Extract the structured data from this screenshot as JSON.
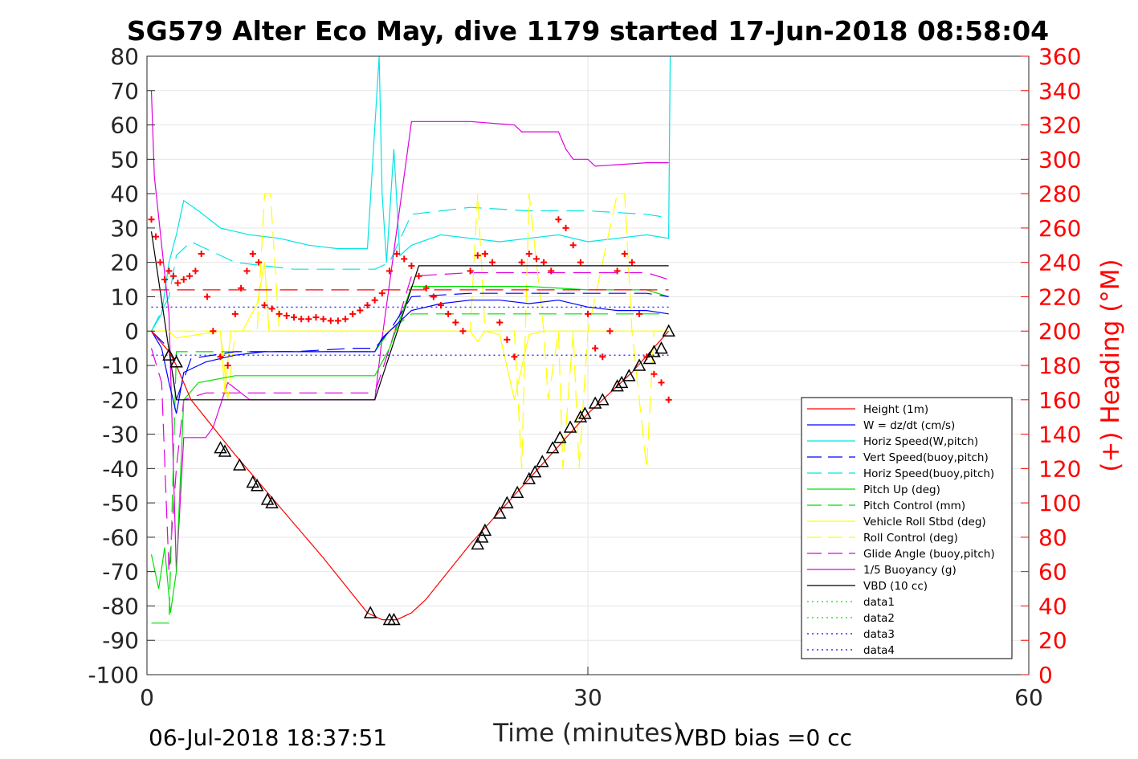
{
  "title": "SG579 Alter Eco May, dive 1179 started 17-Jun-2018 08:58:04",
  "footer_left": "06-Jul-2018 18:37:51",
  "footer_right": "VBD bias =0 cc",
  "colors": {
    "red": "#ff0000",
    "blue": "#0000ff",
    "cyan": "#00e5e5",
    "green": "#00e000",
    "yellow": "#ffff00",
    "magenta": "#e000e0",
    "black": "#000000"
  },
  "chart_data": {
    "type": "line",
    "xlabel": "Time (minutes)",
    "ylabel_right": "(+) Heading (°M)",
    "xlim": [
      0,
      60
    ],
    "ylim": [
      -100,
      80
    ],
    "ylim_right": [
      0,
      360
    ],
    "xticks": [
      0,
      30,
      60
    ],
    "yticks": [
      -100,
      -90,
      -80,
      -70,
      -60,
      -50,
      -40,
      -30,
      -20,
      -10,
      0,
      10,
      20,
      30,
      40,
      50,
      60,
      70,
      80
    ],
    "yticks_right": [
      0,
      20,
      40,
      60,
      80,
      100,
      120,
      140,
      160,
      180,
      200,
      220,
      240,
      260,
      280,
      300,
      320,
      340,
      360
    ],
    "grid": true,
    "legend_position": "lower-right",
    "series": [
      {
        "name": "Height (1m)",
        "color": "#ff0000",
        "dash": "",
        "x": [
          0.3,
          1.5,
          2.0,
          3.0,
          6.0,
          9.0,
          12.0,
          15.0,
          16.0,
          17.0,
          18.0,
          19.0,
          22.0,
          26.0,
          30.0,
          33.0,
          35.5
        ],
        "y": [
          0,
          -6,
          -10,
          -20,
          -36,
          -51,
          -66,
          -82,
          -84,
          -84,
          -82,
          -78,
          -62,
          -43,
          -24,
          -12,
          0
        ]
      },
      {
        "name": "W = dz/dt (cm/s)",
        "color": "#0000ff",
        "dash": "",
        "x": [
          0.3,
          1.0,
          1.5,
          2.0,
          2.5,
          4,
          6,
          8,
          10,
          12,
          14,
          15.5,
          16.0,
          17.0,
          18.0,
          20,
          22,
          24,
          26,
          28,
          30,
          32,
          34,
          35.5
        ],
        "y": [
          0,
          -5,
          -15,
          -24,
          -12,
          -9,
          -7,
          -6,
          -6,
          -6,
          -6,
          -6,
          -2,
          2,
          6,
          8,
          9,
          9,
          8,
          9,
          7,
          6,
          6,
          5
        ]
      },
      {
        "name": "Horiz Speed(W,pitch)",
        "color": "#00e5e5",
        "dash": "",
        "x": [
          0.3,
          1.0,
          1.5,
          2.0,
          2.5,
          3.5,
          5,
          7,
          9,
          11,
          13,
          15,
          15.8,
          16.0,
          16.3,
          16.8,
          17.2,
          18,
          20,
          22,
          24,
          26,
          28,
          30,
          32,
          34,
          35.5,
          35.6
        ],
        "y": [
          0,
          5,
          20,
          28,
          38,
          35,
          30,
          28,
          27,
          25,
          24,
          24,
          80,
          40,
          20,
          53,
          22,
          25,
          28,
          27,
          26,
          27,
          28,
          26,
          27,
          28,
          27,
          80
        ]
      },
      {
        "name": "Vert Speed(buoy,pitch)",
        "color": "#0000ff",
        "dash": "22,10",
        "x": [
          0.3,
          1.5,
          2.0,
          3,
          6,
          10,
          14,
          15.5,
          16.5,
          18,
          22,
          26,
          30,
          34,
          35.5
        ],
        "y": [
          0,
          -5,
          -20,
          -8,
          -6,
          -6,
          -5,
          -5,
          0,
          10,
          11,
          11,
          11,
          11,
          10
        ]
      },
      {
        "name": "Horiz Speed(buoy,pitch)",
        "color": "#00e5e5",
        "dash": "22,10",
        "x": [
          0.3,
          1.5,
          2.0,
          3,
          6,
          10,
          14,
          15.5,
          16.5,
          18,
          22,
          26,
          30,
          34,
          35.5
        ],
        "y": [
          0,
          10,
          22,
          26,
          20,
          18,
          18,
          18,
          20,
          34,
          36,
          35,
          35,
          34,
          33
        ]
      },
      {
        "name": "Pitch Up (deg)",
        "color": "#00e000",
        "dash": "",
        "x": [
          0.3,
          0.8,
          1.2,
          1.6,
          2.0,
          2.5,
          3.5,
          6,
          10,
          14,
          15.5,
          16.5,
          18,
          22,
          26,
          30,
          34,
          35.5
        ],
        "y": [
          -65,
          -75,
          -63,
          -82,
          -70,
          -20,
          -15,
          -13,
          -13,
          -13,
          -13,
          -5,
          13,
          13,
          13,
          12,
          12,
          10
        ]
      },
      {
        "name": "Pitch Control (mm)",
        "color": "#00e000",
        "dash": "22,10",
        "x": [
          0.3,
          1.5,
          2.0,
          3,
          10,
          15.5,
          16.5,
          18,
          22,
          26,
          30,
          35.5
        ],
        "y": [
          -85,
          -85,
          -6,
          -6,
          -6,
          -6,
          0,
          5,
          5,
          5,
          5,
          5
        ]
      },
      {
        "name": "Vehicle Roll Stbd (deg)",
        "color": "#ffff00",
        "dash": "",
        "x": [
          0.3,
          1.5,
          2.0,
          5,
          5.3,
          5.7,
          6.5,
          7.5,
          8,
          8.3,
          9,
          14,
          18,
          20,
          22,
          22.5,
          23,
          24,
          25,
          26,
          27,
          28,
          29,
          30,
          31,
          32,
          33,
          34,
          35.5
        ],
        "y": [
          0,
          0,
          -2,
          0,
          -18,
          0,
          0,
          8,
          20,
          0,
          0,
          0,
          0,
          0,
          0,
          -3,
          0,
          -1,
          -20,
          -1,
          0,
          0,
          0,
          0,
          0,
          0,
          0,
          0,
          0
        ]
      },
      {
        "name": "Roll Control (deg)",
        "color": "#ffff00",
        "dash": "22,10",
        "x": [
          0.3,
          5,
          5.5,
          6,
          7.5,
          8,
          8.4,
          9,
          22,
          22.5,
          23,
          25,
          25.5,
          26,
          27,
          27.3,
          28,
          28.3,
          29,
          29.4,
          30,
          32,
          32.5,
          33,
          34,
          34.5,
          35.5
        ],
        "y": [
          0,
          0,
          -20,
          0,
          0,
          40,
          40,
          0,
          0,
          40,
          0,
          0,
          -40,
          40,
          0,
          -20,
          0,
          -40,
          0,
          -40,
          0,
          40,
          40,
          0,
          -40,
          0,
          0
        ]
      },
      {
        "name": "Glide Angle (buoy,pitch)",
        "color": "#e000e0",
        "dash": "22,10",
        "x": [
          0.3,
          1.0,
          1.5,
          2.0,
          2.5,
          4,
          8,
          12,
          15.5,
          16.5,
          18,
          22,
          26,
          30,
          34,
          35.5
        ],
        "y": [
          -5,
          -15,
          -70,
          -40,
          -20,
          -18,
          -18,
          -18,
          -18,
          -5,
          16,
          17,
          17,
          17,
          17,
          15
        ]
      },
      {
        "name": "1/5 Buoyancy (g)",
        "color": "#e000e0",
        "dash": "",
        "x": [
          0.3,
          0.5,
          1.5,
          2.0,
          2.5,
          4,
          4.5,
          5.5,
          7,
          10,
          15.5,
          16.0,
          18,
          19,
          22,
          25,
          25.5,
          27,
          28,
          28.5,
          29,
          30,
          30.5,
          34,
          35.5
        ],
        "y": [
          70,
          45,
          5,
          -70,
          -31,
          -31,
          -28,
          -15,
          -20,
          -20,
          -20,
          -2,
          61,
          61,
          61,
          60,
          58,
          58,
          58,
          53,
          50,
          50,
          48,
          49,
          49
        ]
      },
      {
        "name": "VBD (10 cc)",
        "color": "#000000",
        "dash": "",
        "x": [
          0.3,
          2.0,
          2.5,
          15.5,
          18.5,
          35.5
        ],
        "y": [
          29,
          -20,
          -20,
          -20,
          19,
          19
        ]
      },
      {
        "name": "data1",
        "color": "#00e000",
        "dash": "2,4",
        "x": [],
        "y": []
      },
      {
        "name": "data2",
        "color": "#00e000",
        "dash": "2,4",
        "x": [],
        "y": []
      },
      {
        "name": "data3",
        "color": "#0000ff",
        "dash": "2,4",
        "x": [
          0.3,
          35.5
        ],
        "y": [
          7,
          7
        ]
      },
      {
        "name": "data4",
        "color": "#0000ff",
        "dash": "2,4",
        "x": [
          0.3,
          35.5
        ],
        "y": [
          -7,
          -7
        ]
      }
    ],
    "extra_lines": [
      {
        "color": "#ff0000",
        "dash": "22,10",
        "x": [
          0.3,
          35.5
        ],
        "y": [
          12,
          12
        ]
      }
    ],
    "heading": {
      "color": "#ff0000",
      "axis": "right",
      "x": [
        0.3,
        0.6,
        0.9,
        1.2,
        1.5,
        1.8,
        2.1,
        2.5,
        2.9,
        3.3,
        3.7,
        4.1,
        4.5,
        5.0,
        5.5,
        6.0,
        6.4,
        6.8,
        7.2,
        7.6,
        8.0,
        8.5,
        9.0,
        9.5,
        10,
        10.5,
        11,
        11.5,
        12,
        12.5,
        13,
        13.5,
        14,
        14.5,
        15,
        15.5,
        16,
        16.5,
        17,
        17.5,
        18,
        18.5,
        19,
        19.5,
        20,
        20.5,
        21,
        21.5,
        22,
        22.5,
        23,
        23.5,
        24,
        24.5,
        25,
        25.5,
        26,
        26.5,
        27,
        27.5,
        28,
        28.5,
        29,
        29.5,
        30,
        30.5,
        31,
        31.5,
        32,
        32.5,
        33,
        33.5,
        34,
        34.5,
        35,
        35.5
      ],
      "y": [
        265,
        255,
        240,
        230,
        235,
        232,
        228,
        230,
        232,
        235,
        245,
        220,
        200,
        185,
        180,
        210,
        225,
        235,
        245,
        240,
        215,
        213,
        210,
        209,
        208,
        207,
        207,
        208,
        207,
        206,
        206,
        207,
        210,
        212,
        215,
        218,
        222,
        235,
        245,
        242,
        238,
        232,
        225,
        220,
        215,
        210,
        205,
        200,
        235,
        244,
        245,
        240,
        205,
        195,
        185,
        240,
        245,
        242,
        240,
        235,
        265,
        260,
        250,
        240,
        210,
        190,
        185,
        200,
        235,
        245,
        240,
        210,
        185,
        175,
        170,
        160
      ]
    },
    "markers": {
      "color": "#000000",
      "x": [
        1.5,
        2.0,
        5.0,
        5.3,
        6.3,
        7.2,
        7.5,
        8.2,
        8.5,
        15.2,
        16.5,
        16.8,
        22.5,
        22.8,
        23,
        24,
        24.5,
        25.2,
        26,
        26.4,
        26.9,
        27.6,
        28.1,
        28.8,
        29.5,
        29.8,
        30.5,
        31,
        32,
        32.3,
        32.8,
        33.5,
        34.2,
        34.5,
        35,
        35.5
      ],
      "y": [
        -7,
        -9,
        -34,
        -35,
        -39,
        -44,
        -45,
        -49,
        -50,
        -82,
        -84,
        -84,
        -62,
        -60,
        -58,
        -53,
        -50,
        -47,
        -43,
        -41,
        -38,
        -34,
        -31,
        -28,
        -25,
        -24,
        -21,
        -20,
        -16,
        -15,
        -13,
        -10,
        -8,
        -6,
        -5,
        0
      ]
    }
  },
  "legend": [
    {
      "label": "Height (1m)",
      "color": "#ff0000",
      "dash": ""
    },
    {
      "label": "W = dz/dt (cm/s)",
      "color": "#0000ff",
      "dash": ""
    },
    {
      "label": "Horiz Speed(W,pitch)",
      "color": "#00e5e5",
      "dash": ""
    },
    {
      "label": "Vert Speed(buoy,pitch)",
      "color": "#0000ff",
      "dash": "18,8"
    },
    {
      "label": "Horiz Speed(buoy,pitch)",
      "color": "#00e5e5",
      "dash": "18,8"
    },
    {
      "label": "Pitch Up (deg)",
      "color": "#00e000",
      "dash": ""
    },
    {
      "label": "Pitch Control (mm)",
      "color": "#00e000",
      "dash": "18,8"
    },
    {
      "label": "Vehicle Roll Stbd (deg)",
      "color": "#ffff00",
      "dash": ""
    },
    {
      "label": "Roll Control (deg)",
      "color": "#ffff00",
      "dash": "18,8"
    },
    {
      "label": "Glide Angle (buoy,pitch)",
      "color": "#e000e0",
      "dash": "18,8"
    },
    {
      "label": "1/5 Buoyancy (g)",
      "color": "#e000e0",
      "dash": ""
    },
    {
      "label": "VBD (10 cc)",
      "color": "#000000",
      "dash": ""
    },
    {
      "label": "data1",
      "color": "#00e000",
      "dash": "2,4"
    },
    {
      "label": "data2",
      "color": "#00e000",
      "dash": "2,4"
    },
    {
      "label": "data3",
      "color": "#0000ff",
      "dash": "2,4"
    },
    {
      "label": "data4",
      "color": "#0000ff",
      "dash": "2,4"
    }
  ]
}
